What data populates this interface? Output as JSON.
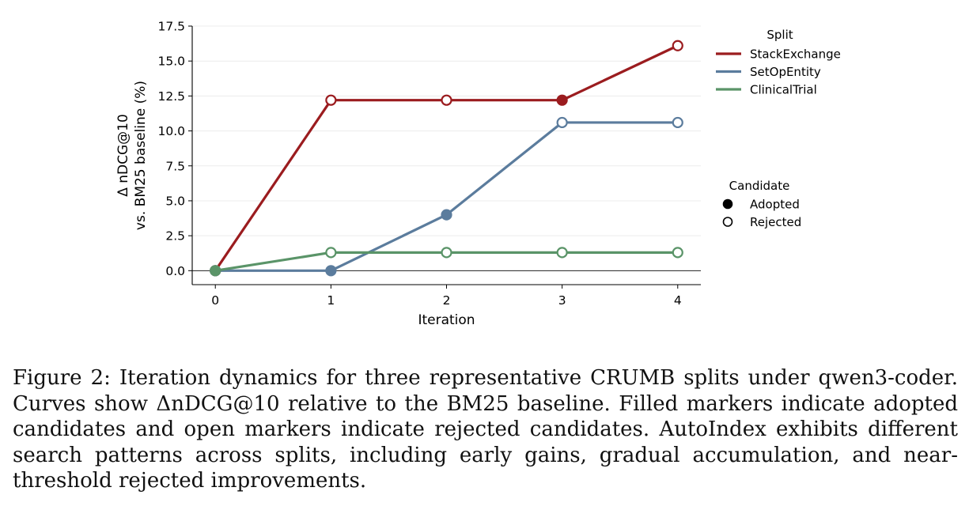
{
  "chart_data": {
    "type": "line",
    "xlabel": "Iteration",
    "ylabel_lines": [
      "Δ nDCG@10",
      "vs. BM25 baseline (%)"
    ],
    "x": [
      0,
      1,
      2,
      3,
      4
    ],
    "x_ticks": [
      "0",
      "1",
      "2",
      "3",
      "4"
    ],
    "y_ticks": [
      "0.0",
      "2.5",
      "5.0",
      "7.5",
      "10.0",
      "12.5",
      "15.0",
      "17.5"
    ],
    "xlim": [
      -0.2,
      4.2
    ],
    "ylim": [
      -1.0,
      17.5
    ],
    "grid": "horizontal light",
    "legend_split": {
      "title": "Split",
      "position": "right-top"
    },
    "legend_candidate": {
      "title": "Candidate",
      "items": [
        {
          "label": "Adopted",
          "filled": true
        },
        {
          "label": "Rejected",
          "filled": false
        }
      ],
      "position": "right-middle"
    },
    "series": [
      {
        "name": "StackExchange",
        "color": "#9b1c1f",
        "values": [
          0.0,
          12.2,
          12.2,
          12.2,
          16.1
        ],
        "adopted": [
          true,
          false,
          false,
          true,
          false
        ]
      },
      {
        "name": "SetOpEntity",
        "color": "#5b7c9d",
        "values": [
          0.0,
          0.0,
          4.0,
          10.6,
          10.6
        ],
        "adopted": [
          true,
          true,
          true,
          false,
          false
        ]
      },
      {
        "name": "ClinicalTrial",
        "color": "#5a9468",
        "values": [
          0.0,
          1.3,
          1.3,
          1.3,
          1.3
        ],
        "adopted": [
          true,
          false,
          false,
          false,
          false
        ]
      }
    ]
  },
  "caption": "Figure 2: Iteration dynamics for three representative CRUMB splits under qwen3-coder. Curves show ΔnDCG@10 relative to the BM25 baseline. Filled markers indicate adopted candidates and open markers indicate rejected candidates. AutoIndex exhibits different search patterns across splits, including early gains, gradual accumulation, and near-threshold rejected improvements."
}
